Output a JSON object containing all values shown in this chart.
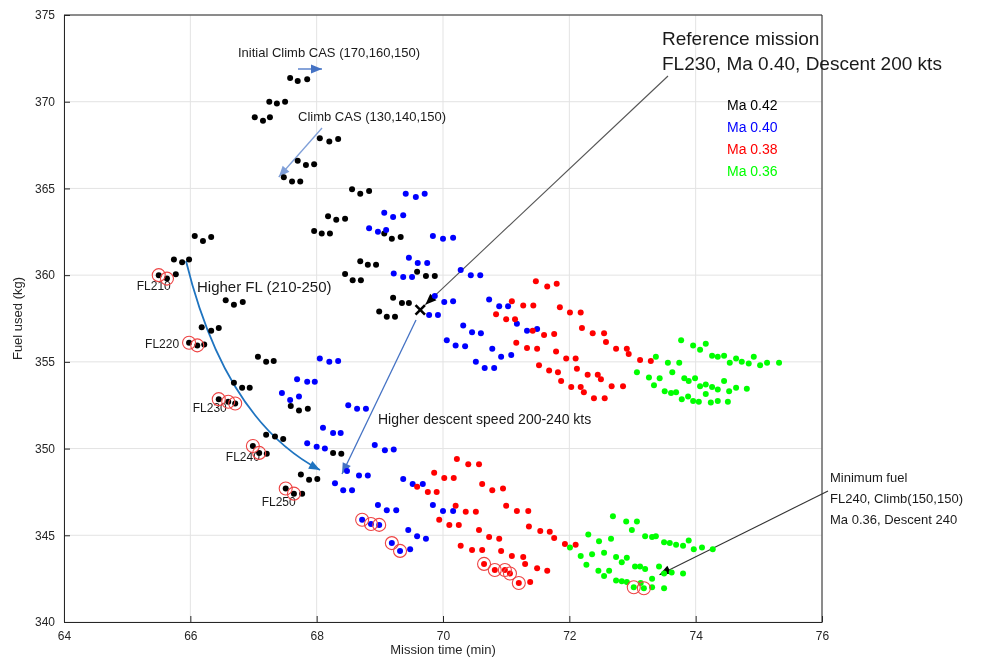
{
  "chart_data": {
    "type": "scatter",
    "xlabel": "Mission time (min)",
    "ylabel": "Fuel used (kg)",
    "xlim": [
      64,
      76
    ],
    "xticks": [
      64,
      66,
      68,
      70,
      72,
      74,
      76
    ],
    "ylim": [
      340,
      375
    ],
    "yticks": [
      340,
      345,
      350,
      355,
      360,
      365,
      370,
      375
    ],
    "grid": true,
    "legend": "top right",
    "marker": "circle",
    "series": [
      {
        "name": "Ma 0.42",
        "color": "#000000",
        "x": [
          67.58,
          67.7,
          67.85,
          67.25,
          67.37,
          67.5,
          67.02,
          67.15,
          67.26,
          68.05,
          68.2,
          68.34,
          67.7,
          67.83,
          67.96,
          67.48,
          67.61,
          67.74,
          68.56,
          68.69,
          68.83,
          68.18,
          68.31,
          68.45,
          67.96,
          68.08,
          68.21,
          69.07,
          69.19,
          69.33,
          66.07,
          66.2,
          66.33,
          65.74,
          65.87,
          65.98,
          65.5,
          65.63,
          65.77,
          68.69,
          68.81,
          68.94,
          69.59,
          69.73,
          69.87,
          68.45,
          68.57,
          68.7,
          69.21,
          69.35,
          69.46,
          68.99,
          69.11,
          69.24,
          66.56,
          66.69,
          66.83,
          66.18,
          66.33,
          66.45,
          65.98,
          66.11,
          66.22,
          67.07,
          67.2,
          67.32,
          66.69,
          66.82,
          66.94,
          66.45,
          66.6,
          66.71,
          67.59,
          67.72,
          67.86,
          67.2,
          67.34,
          67.47,
          66.99,
          67.09,
          67.21,
          68.26,
          68.39,
          67.75,
          67.88,
          68.01,
          67.51,
          67.64,
          67.77
        ],
        "values": [
          371.37,
          371.2,
          371.3,
          370.0,
          369.9,
          370.0,
          369.1,
          368.9,
          369.1,
          367.9,
          367.7,
          367.85,
          366.6,
          366.35,
          366.4,
          365.65,
          365.4,
          365.4,
          364.95,
          364.7,
          364.85,
          363.4,
          363.2,
          363.25,
          362.55,
          362.4,
          362.4,
          362.4,
          362.1,
          362.2,
          362.25,
          361.97,
          362.2,
          360.9,
          360.75,
          360.9,
          360.0,
          359.8,
          360.05,
          360.8,
          360.6,
          360.6,
          360.2,
          359.95,
          359.95,
          360.06,
          359.7,
          359.7,
          358.7,
          358.4,
          358.4,
          357.9,
          357.6,
          357.6,
          358.55,
          358.3,
          358.45,
          357.0,
          356.8,
          356.95,
          356.1,
          355.95,
          356.0,
          355.3,
          355.0,
          355.05,
          353.8,
          353.5,
          353.5,
          352.85,
          352.7,
          352.6,
          352.45,
          352.2,
          352.3,
          350.8,
          350.7,
          350.55,
          350.15,
          349.75,
          349.7,
          349.75,
          349.7,
          348.5,
          348.2,
          348.25,
          347.7,
          347.4,
          347.4
        ]
      },
      {
        "name": "Ma 0.40",
        "color": "#0000ff",
        "x": [
          69.41,
          69.57,
          69.71,
          69.07,
          69.21,
          69.37,
          68.83,
          68.97,
          69.1,
          69.84,
          70.0,
          70.16,
          69.46,
          69.6,
          69.75,
          69.22,
          69.37,
          69.51,
          70.28,
          70.44,
          70.59,
          69.87,
          70.02,
          70.16,
          69.78,
          69.92,
          70.73,
          70.89,
          71.03,
          70.32,
          70.46,
          70.6,
          70.06,
          70.2,
          70.35,
          71.17,
          71.33,
          71.49,
          70.78,
          70.92,
          71.08,
          70.52,
          70.66,
          70.81,
          68.05,
          68.2,
          68.34,
          67.69,
          67.85,
          67.97,
          67.45,
          67.58,
          67.72,
          68.5,
          68.64,
          68.78,
          68.1,
          68.26,
          68.38,
          67.85,
          68.0,
          68.13,
          68.92,
          69.08,
          69.22,
          68.48,
          68.67,
          68.81,
          68.29,
          68.42,
          68.56,
          69.37,
          69.52,
          69.68,
          68.97,
          69.11,
          69.26,
          69.45,
          69.59,
          69.73,
          69.48,
          69.84,
          70.0,
          70.16,
          68.72,
          68.86,
          68.99,
          69.19,
          69.32
        ],
        "values": [
          364.7,
          364.5,
          364.7,
          363.6,
          363.35,
          363.45,
          362.7,
          362.5,
          362.6,
          362.25,
          362.1,
          362.15,
          361.0,
          360.7,
          360.7,
          360.1,
          359.9,
          359.9,
          360.3,
          360.0,
          360.0,
          358.8,
          358.45,
          358.5,
          357.7,
          357.7,
          358.6,
          358.2,
          358.2,
          357.1,
          356.7,
          356.65,
          356.25,
          355.95,
          355.9,
          357.2,
          356.8,
          356.9,
          355.75,
          355.3,
          355.4,
          355.0,
          354.65,
          354.65,
          355.2,
          355.0,
          355.05,
          354.0,
          353.85,
          353.85,
          353.2,
          352.8,
          353.0,
          352.5,
          352.3,
          352.3,
          351.2,
          350.9,
          350.9,
          350.3,
          350.1,
          350.0,
          350.2,
          349.9,
          349.95,
          348.7,
          348.45,
          348.45,
          348.0,
          347.6,
          347.6,
          348.25,
          347.95,
          347.95,
          346.75,
          346.45,
          346.45,
          345.3,
          344.95,
          344.8,
          344.2,
          346.75,
          346.4,
          346.4,
          345.9,
          345.65,
          345.6,
          344.55,
          344.1
        ]
      },
      {
        "name": "Ma 0.38",
        "color": "#ff0000",
        "x": [
          71.47,
          71.65,
          71.8,
          71.09,
          71.27,
          71.43,
          70.84,
          71.0,
          71.14,
          71.85,
          72.01,
          72.18,
          71.42,
          71.6,
          71.76,
          71.16,
          71.33,
          71.49,
          72.2,
          72.37,
          72.55,
          72.58,
          72.74,
          72.91,
          71.79,
          71.95,
          72.1,
          71.52,
          71.68,
          71.82,
          71.87,
          72.12,
          72.29,
          72.45,
          72.5,
          72.03,
          72.18,
          72.23,
          72.39,
          72.56,
          72.94,
          73.12,
          73.29,
          72.67,
          72.85,
          70.22,
          70.4,
          70.57,
          69.86,
          70.02,
          70.17,
          69.59,
          69.76,
          69.9,
          70.62,
          70.78,
          70.95,
          70.2,
          70.36,
          70.52,
          69.94,
          70.1,
          70.25,
          71.0,
          71.17,
          71.35,
          71.36,
          70.57,
          70.73,
          70.89,
          70.28,
          70.46,
          70.62,
          71.54,
          71.69,
          71.76,
          70.92,
          71.09,
          71.27,
          71.3,
          71.49,
          71.65,
          71.93,
          72.1,
          70.65,
          70.82,
          70.98,
          71.06,
          71.2,
          71.38
        ],
        "values": [
          359.65,
          359.35,
          359.5,
          358.5,
          358.25,
          358.25,
          357.75,
          357.45,
          357.45,
          358.15,
          357.85,
          357.85,
          356.8,
          356.55,
          356.6,
          356.1,
          355.8,
          355.75,
          356.95,
          356.65,
          356.65,
          356.15,
          355.75,
          355.75,
          355.6,
          355.2,
          355.2,
          354.8,
          354.5,
          354.4,
          353.9,
          354.6,
          354.25,
          354.25,
          354.0,
          353.55,
          353.55,
          353.25,
          352.9,
          352.9,
          355.45,
          355.1,
          355.05,
          353.6,
          353.6,
          349.4,
          349.1,
          349.1,
          348.6,
          348.3,
          348.3,
          347.8,
          347.5,
          347.5,
          347.95,
          347.6,
          347.7,
          346.7,
          346.35,
          346.35,
          345.9,
          345.6,
          345.6,
          346.7,
          346.4,
          346.4,
          345.5,
          345.3,
          344.9,
          344.8,
          344.4,
          344.15,
          344.15,
          345.25,
          345.2,
          344.85,
          344.1,
          343.8,
          343.75,
          343.35,
          343.1,
          342.95,
          344.5,
          344.45,
          343.35,
          343.0,
          343.0,
          342.8,
          342.25,
          342.3
        ]
      },
      {
        "name": "Ma 0.36",
        "color": "#00ff00",
        "x": [
          73.77,
          73.96,
          74.07,
          74.16,
          74.26,
          74.35,
          74.45,
          74.64,
          74.92,
          74.54,
          74.73,
          74.84,
          75.02,
          75.13,
          75.32,
          73.37,
          73.56,
          73.74,
          73.07,
          73.26,
          73.43,
          73.63,
          73.82,
          73.89,
          73.99,
          73.34,
          74.07,
          74.16,
          74.26,
          74.35,
          74.45,
          74.53,
          74.64,
          74.81,
          73.51,
          73.61,
          73.69,
          73.78,
          73.88,
          73.96,
          74.05,
          74.16,
          74.24,
          74.35,
          74.51,
          72.69,
          72.9,
          73.07,
          72.99,
          72.3,
          72.47,
          72.66,
          72.01,
          72.18,
          72.36,
          72.55,
          73.2,
          73.31,
          73.37,
          73.5,
          73.59,
          73.69,
          73.8,
          73.89,
          73.97,
          74.1,
          74.27,
          72.74,
          72.83,
          72.91,
          72.27,
          72.46,
          72.63,
          72.55,
          73.04,
          73.12,
          73.2,
          73.42,
          73.5,
          73.62,
          73.8,
          73.13,
          73.31,
          72.74,
          72.83,
          72.91,
          73.02,
          73.18,
          73.31,
          73.5
        ],
        "values": [
          356.25,
          355.95,
          355.7,
          356.05,
          355.35,
          355.3,
          355.35,
          355.2,
          355.3,
          354.95,
          355.0,
          354.9,
          354.8,
          354.95,
          354.95,
          355.3,
          354.95,
          354.95,
          354.4,
          354.1,
          354.05,
          354.4,
          354.05,
          353.9,
          354.05,
          353.65,
          353.6,
          353.7,
          353.55,
          353.4,
          353.9,
          353.3,
          353.5,
          353.45,
          353.3,
          353.2,
          353.25,
          352.85,
          353.0,
          352.75,
          352.7,
          353.15,
          352.65,
          352.75,
          352.7,
          346.1,
          345.8,
          345.8,
          345.3,
          345.05,
          344.65,
          344.8,
          344.3,
          343.8,
          343.9,
          344.0,
          344.95,
          344.9,
          344.95,
          344.6,
          344.55,
          344.45,
          344.4,
          344.7,
          344.2,
          344.3,
          344.2,
          343.75,
          343.45,
          343.7,
          343.3,
          342.95,
          342.95,
          342.65,
          343.2,
          343.2,
          343.05,
          343.2,
          342.8,
          342.85,
          342.8,
          342.25,
          342.5,
          342.4,
          342.35,
          342.3,
          342.0,
          341.95,
          342.0,
          341.95
        ]
      },
      {
        "type": "scatter",
        "marker": "circle",
        "color": "#ee4444",
        "x": [
          65.5,
          65.63,
          65.98,
          66.11,
          66.45,
          66.6,
          66.71,
          66.99,
          67.09,
          67.51,
          67.64,
          68.72,
          68.86,
          68.99,
          69.19,
          69.32,
          70.65,
          70.82,
          70.98,
          71.06,
          71.2,
          73.02,
          73.18
        ],
        "values": [
          360.0,
          359.8,
          356.1,
          355.95,
          352.85,
          352.7,
          352.6,
          350.15,
          349.75,
          347.7,
          347.4,
          345.9,
          345.65,
          345.6,
          344.55,
          344.1,
          343.35,
          343.0,
          343.0,
          342.8,
          342.25,
          342.0,
          341.95
        ]
      },
      {
        "type": "scatter",
        "marker": "cross",
        "color": "#000000",
        "x": [
          69.64
        ],
        "values": [
          358.0
        ]
      }
    ],
    "annotations": [
      "Initial Climb CAS (170,160,150)",
      {
        "text": "Climb CAS (130,140,150)",
        "x": 67.4,
        "y": 365.66
      },
      {
        "text": "Reference mission\nFL230, Ma 0.40, Descent 200 kts",
        "x": 69.72,
        "y": 358.3
      },
      "Higher FL (210-250)",
      "Higher descent speed 200-240 kts",
      {
        "text": "Minimum fuel\nFL240, Climb(150,150)\nMa 0.36, Descent 240",
        "x": 73.3,
        "y": 342.5
      },
      {
        "text": "FL210",
        "x": 65.5,
        "y": 360.0
      },
      {
        "text": "FL220",
        "x": 65.98,
        "y": 356.1
      },
      {
        "text": "FL230",
        "x": 66.45,
        "y": 352.85
      },
      {
        "text": "FL240",
        "x": 66.99,
        "y": 350.15
      },
      {
        "text": "FL250",
        "x": 67.51,
        "y": 347.7
      }
    ]
  }
}
